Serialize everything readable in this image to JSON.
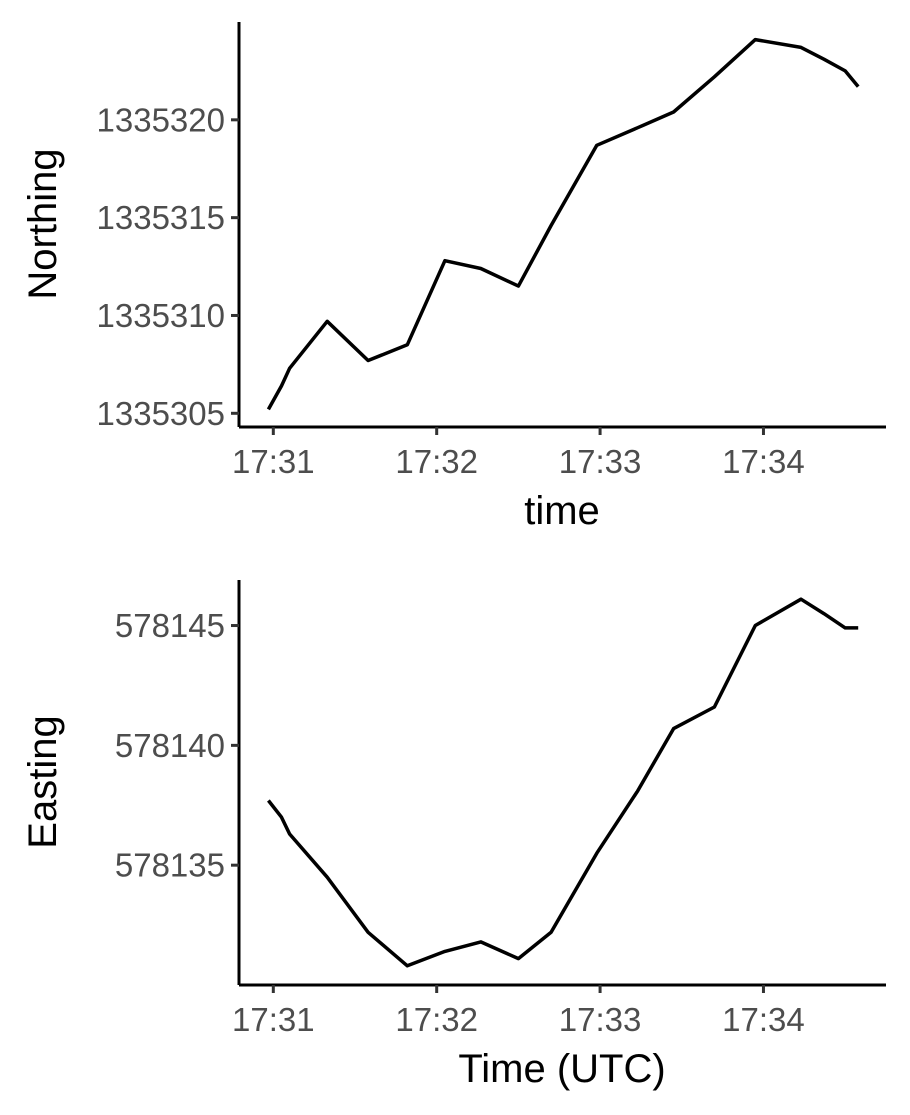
{
  "chart_data": [
    {
      "type": "line",
      "title": "",
      "xlabel": "time",
      "ylabel": "Northing",
      "x_tick_labels": [
        "17:31",
        "17:32",
        "17:33",
        "17:34"
      ],
      "x_ticks_min": [
        31,
        32,
        33,
        34
      ],
      "y_ticks": [
        1335305,
        1335310,
        1335315,
        1335320
      ],
      "y_tick_labels": [
        "1335305",
        "1335310",
        "1335315",
        "1335320"
      ],
      "xlim_min": [
        30.79,
        34.75
      ],
      "ylim": [
        1335304.3,
        1335325.0
      ],
      "grid": false,
      "legend": "none",
      "line_color": "#000000",
      "series": [
        {
          "x_min": [
            30.97,
            31.05,
            31.1,
            31.33,
            31.58,
            31.82,
            32.05,
            32.27,
            32.5,
            32.7,
            32.98,
            33.23,
            33.45,
            33.7,
            33.95,
            34.23,
            34.37,
            34.5,
            34.58
          ],
          "values": [
            1335305.2,
            1335306.4,
            1335307.3,
            1335309.7,
            1335307.7,
            1335308.5,
            1335312.8,
            1335312.4,
            1335311.5,
            1335314.6,
            1335318.7,
            1335319.6,
            1335320.4,
            1335322.2,
            1335324.1,
            1335323.7,
            1335323.1,
            1335322.5,
            1335321.7
          ]
        }
      ]
    },
    {
      "type": "line",
      "title": "",
      "xlabel": "Time (UTC)",
      "ylabel": "Easting",
      "x_tick_labels": [
        "17:31",
        "17:32",
        "17:33",
        "17:34"
      ],
      "x_ticks_min": [
        31,
        32,
        33,
        34
      ],
      "y_ticks": [
        578135,
        578140,
        578145
      ],
      "y_tick_labels": [
        "578135",
        "578140",
        "578145"
      ],
      "xlim_min": [
        30.79,
        34.75
      ],
      "ylim": [
        578130.0,
        578146.9
      ],
      "grid": false,
      "legend": "none",
      "line_color": "#000000",
      "series": [
        {
          "x_min": [
            30.97,
            31.05,
            31.1,
            31.33,
            31.58,
            31.82,
            32.05,
            32.27,
            32.5,
            32.7,
            32.98,
            33.23,
            33.45,
            33.7,
            33.95,
            34.23,
            34.37,
            34.5,
            34.58
          ],
          "values": [
            578137.7,
            578137.0,
            578136.3,
            578134.5,
            578132.2,
            578130.8,
            578131.4,
            578131.8,
            578131.1,
            578132.2,
            578135.5,
            578138.1,
            578140.7,
            578141.6,
            578145.0,
            578146.1,
            578145.5,
            578144.9,
            578144.9
          ]
        }
      ]
    }
  ]
}
